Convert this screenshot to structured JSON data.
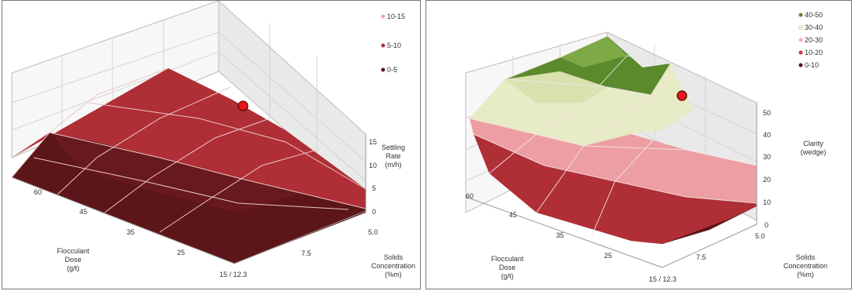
{
  "chart_data": [
    {
      "type": "surface",
      "title": "",
      "x_axis": {
        "label_lines": [
          "Flocculant",
          "Dose",
          "(g/t)"
        ],
        "ticks": [
          "60",
          "45",
          "35",
          "25",
          "15 / 12.3"
        ]
      },
      "y_axis": {
        "label_lines": [
          "Solids",
          "Concentration",
          "(%m)"
        ],
        "ticks": [
          "5.0",
          "7.5"
        ]
      },
      "z_axis": {
        "label_lines": [
          "Settling",
          "Rate",
          "(m/h)"
        ],
        "ticks": [
          "0",
          "5",
          "10",
          "15"
        ],
        "range": [
          0,
          15
        ]
      },
      "legend": {
        "position": "top-right",
        "entries": [
          {
            "label": "10-15",
            "color": "#f2a7a5"
          },
          {
            "label": "5-10",
            "color": "#b8353a"
          },
          {
            "label": "0-5",
            "color": "#5c1518"
          }
        ]
      },
      "marker": {
        "flocculant_dose": 60,
        "solids_concentration": 12.3,
        "settling_rate": 13,
        "color": "#e3171c"
      },
      "colors": {
        "bands": [
          "#5c1518",
          "#b8353a",
          "#f2a7a5"
        ],
        "grid": "#d9d9d9"
      }
    },
    {
      "type": "surface",
      "title": "",
      "x_axis": {
        "label_lines": [
          "Flocculant",
          "Dose",
          "(g/t)"
        ],
        "ticks": [
          "60",
          "45",
          "35",
          "25",
          "15 / 12.3"
        ]
      },
      "y_axis": {
        "label_lines": [
          "Solids",
          "Concentration",
          "(%m)"
        ],
        "ticks": [
          "5.0",
          "7.5"
        ]
      },
      "z_axis": {
        "label_lines": [
          "Clarity",
          "(wedge)"
        ],
        "ticks": [
          "0",
          "10",
          "20",
          "30",
          "40",
          "50"
        ],
        "range": [
          0,
          50
        ]
      },
      "legend": {
        "position": "top-right",
        "entries": [
          {
            "label": "40-50",
            "color": "#5e8a2f"
          },
          {
            "label": "30-40",
            "color": "#eef3d6"
          },
          {
            "label": "20-30",
            "color": "#f2aeb0"
          },
          {
            "label": "10-20",
            "color": "#c03a42"
          },
          {
            "label": "0-10",
            "color": "#5c1518"
          }
        ]
      },
      "marker": {
        "flocculant_dose": 60,
        "solids_concentration": 12.3,
        "clarity": 45,
        "color": "#e3171c"
      },
      "colors": {
        "bands": [
          "#5c1518",
          "#c03a42",
          "#f2aeb0",
          "#eef3d6",
          "#5e8a2f"
        ],
        "grid": "#d9d9d9"
      }
    }
  ]
}
